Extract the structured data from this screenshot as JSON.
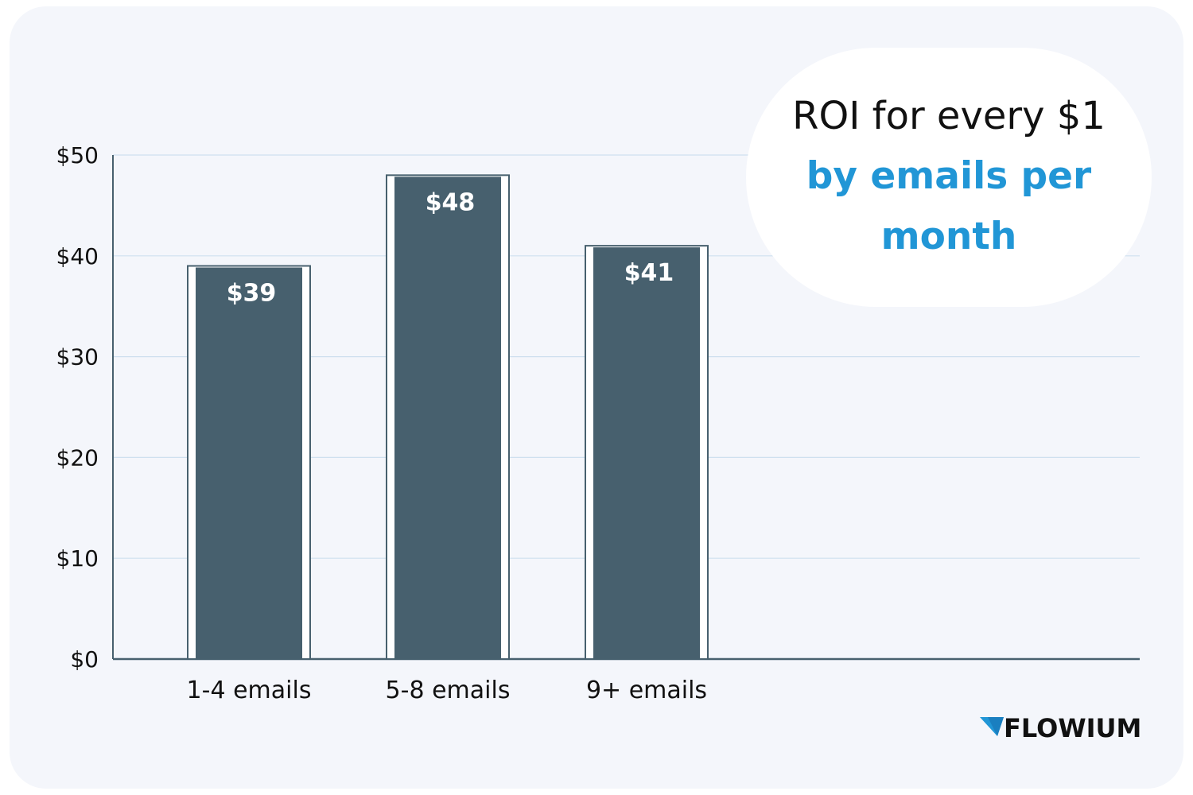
{
  "title": {
    "line1": "ROI for every $1",
    "line2": "by emails per month"
  },
  "brand": {
    "name": "FLOWIUM",
    "icon": "flowium-logo-icon"
  },
  "colors": {
    "bar": "#47606e",
    "title_accent": "#2196d6",
    "grid": "#cfe0ef",
    "axis": "#47606e"
  },
  "chart_data": {
    "type": "bar",
    "categories": [
      "1-4 emails",
      "5-8 emails",
      "9+ emails"
    ],
    "values": [
      39,
      48,
      41
    ],
    "data_labels": [
      "$39",
      "$48",
      "$41"
    ],
    "ylim": [
      0,
      50
    ],
    "yticks": [
      0,
      10,
      20,
      30,
      40,
      50
    ],
    "ytick_labels": [
      "$0",
      "$10",
      "$20",
      "$30",
      "$40",
      "$50"
    ],
    "grid": true,
    "legend": "none"
  }
}
